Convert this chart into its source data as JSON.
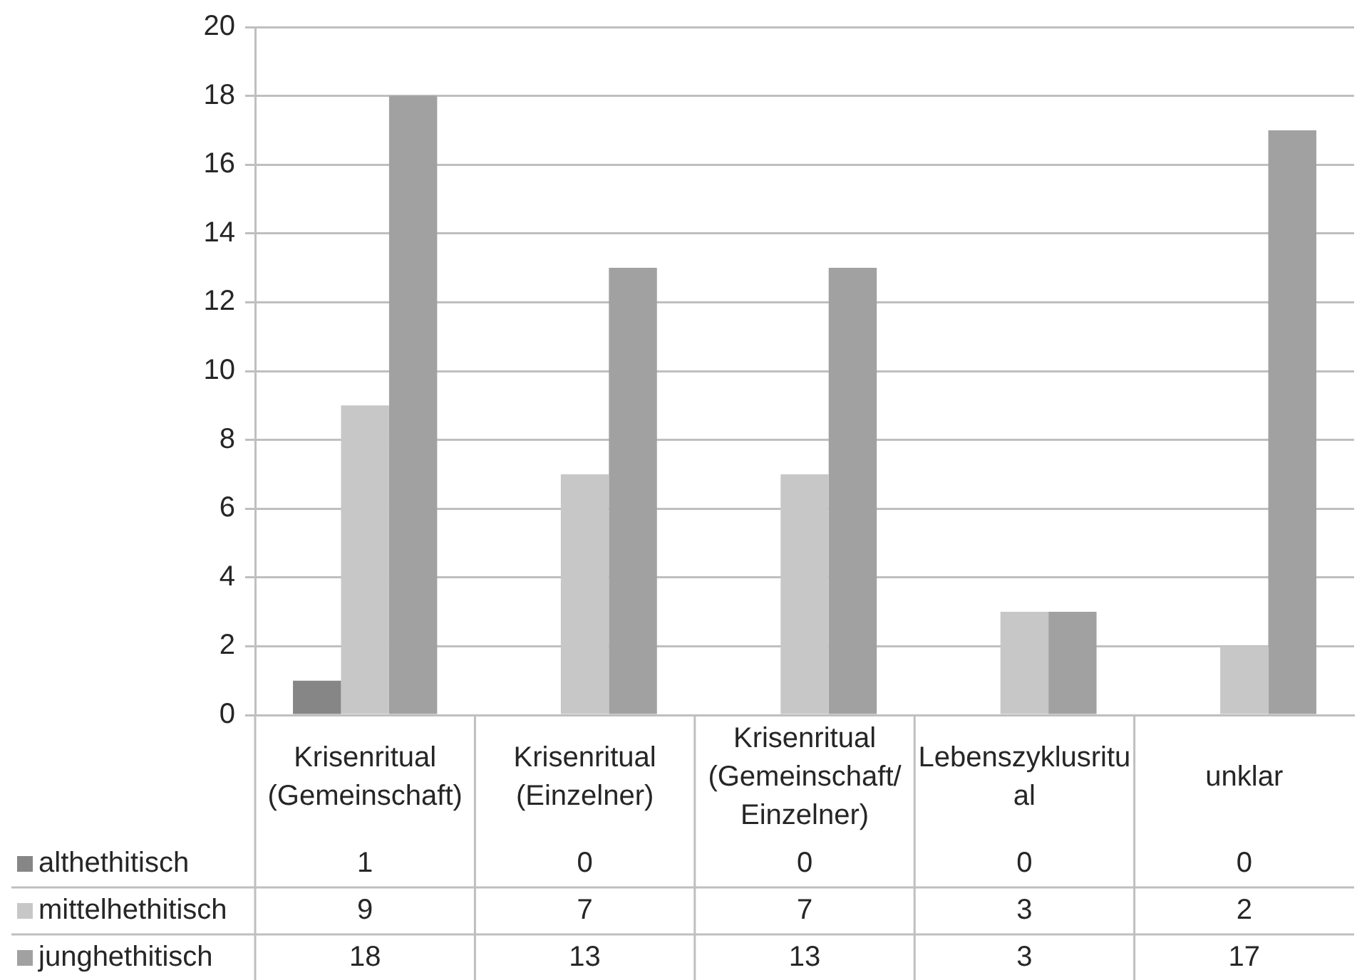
{
  "chart_data": {
    "type": "bar",
    "categories": [
      "Krisenritual (Gemeinschaft)",
      "Krisenritual (Einzelner)",
      "Krisenritual (Gemeinschaft/Einzelner)",
      "Lebenszyklusritual",
      "unklar"
    ],
    "series": [
      {
        "name": "althethitisch",
        "color": "#868686",
        "values": [
          1,
          0,
          0,
          0,
          0
        ]
      },
      {
        "name": "mittelhethitisch",
        "color": "#c6c7c6",
        "values": [
          9,
          7,
          7,
          3,
          2
        ]
      },
      {
        "name": "junghethitisch",
        "color": "#a0a1a0",
        "values": [
          18,
          13,
          13,
          3,
          17
        ]
      }
    ],
    "ylim": [
      0,
      20
    ],
    "yticks": [
      0,
      2,
      4,
      6,
      8,
      10,
      12,
      14,
      16,
      18,
      20
    ],
    "grid": "y",
    "legend": "bottom left",
    "data_labels": true
  }
}
